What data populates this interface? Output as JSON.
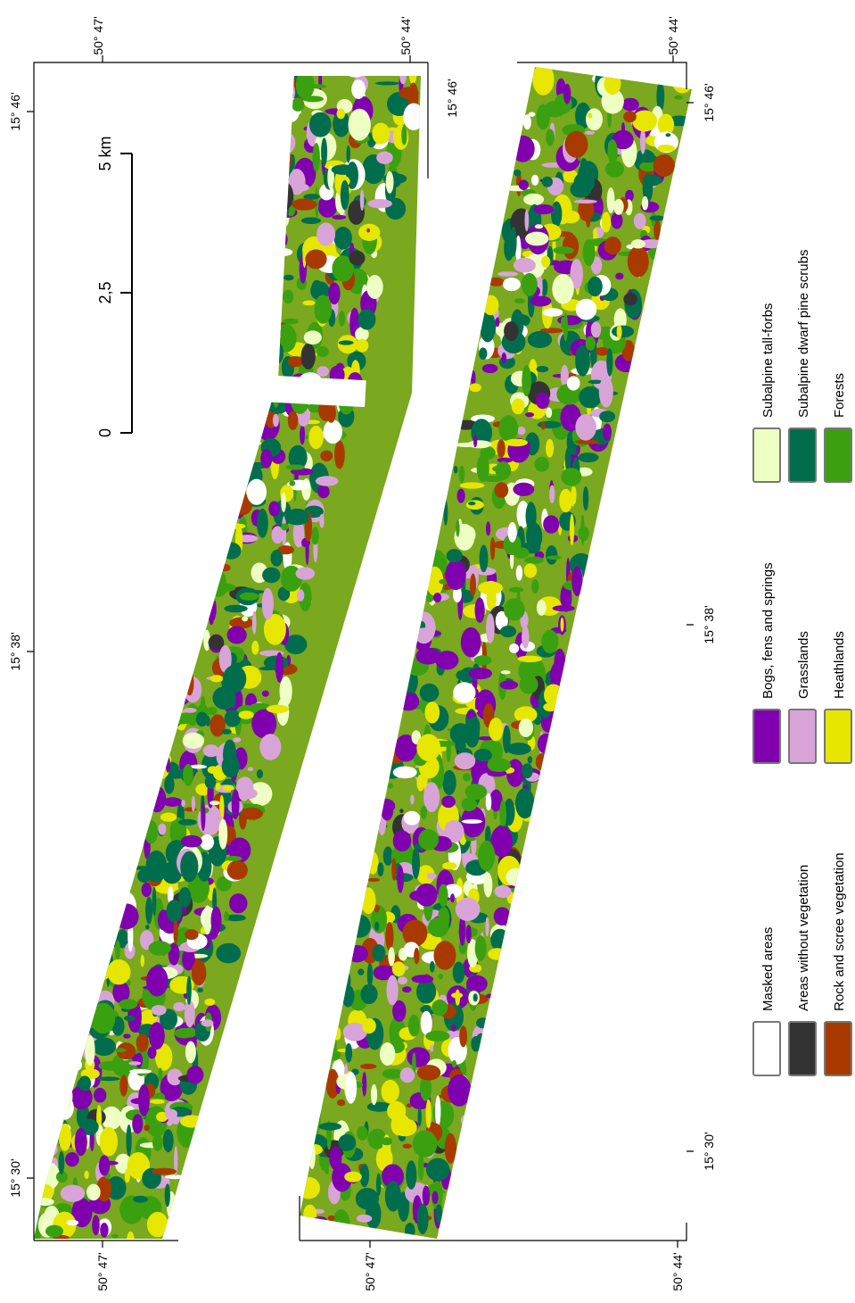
{
  "map_labels": {
    "latitude": [
      "50° 47'",
      "50° 44'",
      "50° 47'",
      "50° 47'",
      "50° 44'",
      "50° 44'"
    ],
    "longitude": [
      "15° 46'",
      "15° 38'",
      "15° 30'",
      "15° 46'",
      "15° 46'",
      "15° 38'",
      "15° 30'"
    ]
  },
  "scale_bar": {
    "labels": [
      "5 km",
      "2,5",
      "0"
    ]
  },
  "legend": [
    {
      "label": "Masked areas",
      "color": "#ffffff"
    },
    {
      "label": "Areas without vegetation",
      "color": "#333333"
    },
    {
      "label": "Rock and scree vegetation",
      "color": "#a83a00"
    },
    {
      "label": "Bogs, fens and springs",
      "color": "#8000b0"
    },
    {
      "label": "Grasslands",
      "color": "#d8a4d8"
    },
    {
      "label": "Heathlands",
      "color": "#e6e600"
    },
    {
      "label": "Subalpine tall-forbs",
      "color": "#eeffc4"
    },
    {
      "label": "Subalpine dwarf pine scrubs",
      "color": "#006e4c"
    },
    {
      "label": "Forests",
      "color": "#3aa010"
    }
  ]
}
